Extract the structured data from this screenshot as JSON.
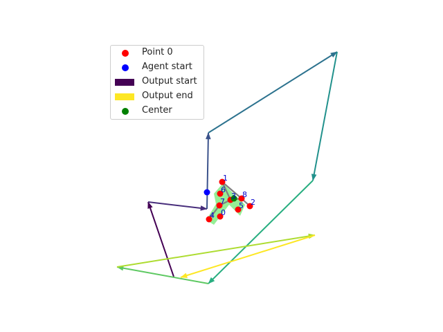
{
  "chart_data": {
    "type": "scatter",
    "title": "",
    "xlabel": "",
    "ylabel": "",
    "axes_visible": false,
    "grid": false,
    "legend_position": "upper-left",
    "legend": [
      {
        "label": "Point 0",
        "marker": "dot",
        "color": "#ff0000"
      },
      {
        "label": "Agent start",
        "marker": "dot",
        "color": "#0000ff"
      },
      {
        "label": "Output start",
        "marker": "patch",
        "color": "#440154"
      },
      {
        "label": "Output end",
        "marker": "patch",
        "color": "#fde725"
      },
      {
        "label": "Center",
        "marker": "dot",
        "color": "#008000"
      }
    ],
    "points": [
      {
        "label": "0",
        "x": 318,
        "y": 313
      },
      {
        "label": "1",
        "x": 321,
        "y": 263
      },
      {
        "label": "2",
        "x": 361,
        "y": 298
      },
      {
        "label": "3",
        "x": 333,
        "y": 289
      },
      {
        "label": "4",
        "x": 302,
        "y": 317
      },
      {
        "label": "5",
        "x": 344,
        "y": 303
      },
      {
        "label": "6",
        "x": 318,
        "y": 280
      },
      {
        "label": "7",
        "x": 317,
        "y": 297
      },
      {
        "label": "8",
        "x": 349,
        "y": 287
      }
    ],
    "point_color": "#ff0000",
    "label_color": "#0000cc",
    "center": {
      "x": 338,
      "y": 287,
      "color": "#008000"
    },
    "agent_start": {
      "x": 299,
      "y": 278,
      "color": "#0000ff"
    },
    "shape_fill": "#90ee90",
    "shape_polygon": [
      [
        322,
        265
      ],
      [
        354,
        296
      ],
      [
        347,
        312
      ],
      [
        331,
        296
      ],
      [
        309,
        325
      ],
      [
        298,
        318
      ],
      [
        312,
        295
      ],
      [
        309,
        280
      ]
    ],
    "internal_edges": [
      [
        [
          321,
          263
        ],
        [
          333,
          289
        ]
      ],
      [
        [
          321,
          263
        ],
        [
          349,
          287
        ]
      ],
      [
        [
          349,
          287
        ],
        [
          361,
          298
        ]
      ],
      [
        [
          333,
          289
        ],
        [
          349,
          287
        ]
      ],
      [
        [
          317,
          297
        ],
        [
          333,
          289
        ]
      ],
      [
        [
          317,
          297
        ],
        [
          302,
          317
        ]
      ]
    ],
    "edge_color": "#808080",
    "path": [
      {
        "x1": 251,
        "y1": 400,
        "x2": 214,
        "y2": 292,
        "color": "#440154"
      },
      {
        "x1": 214,
        "y1": 292,
        "x2": 299,
        "y2": 302,
        "color": "#472d7b"
      },
      {
        "x1": 299,
        "y1": 302,
        "x2": 301,
        "y2": 192,
        "color": "#3b528b"
      },
      {
        "x1": 301,
        "y1": 192,
        "x2": 487,
        "y2": 75,
        "color": "#2c728e"
      },
      {
        "x1": 487,
        "y1": 75,
        "x2": 452,
        "y2": 261,
        "color": "#21918c"
      },
      {
        "x1": 452,
        "y1": 261,
        "x2": 301,
        "y2": 410,
        "color": "#28ae80"
      },
      {
        "x1": 301,
        "y1": 410,
        "x2": 169,
        "y2": 386,
        "color": "#5ec962"
      },
      {
        "x1": 169,
        "y1": 386,
        "x2": 455,
        "y2": 340,
        "color": "#addc30"
      },
      {
        "x1": 455,
        "y1": 340,
        "x2": 261,
        "y2": 401,
        "color": "#fde725"
      }
    ]
  }
}
